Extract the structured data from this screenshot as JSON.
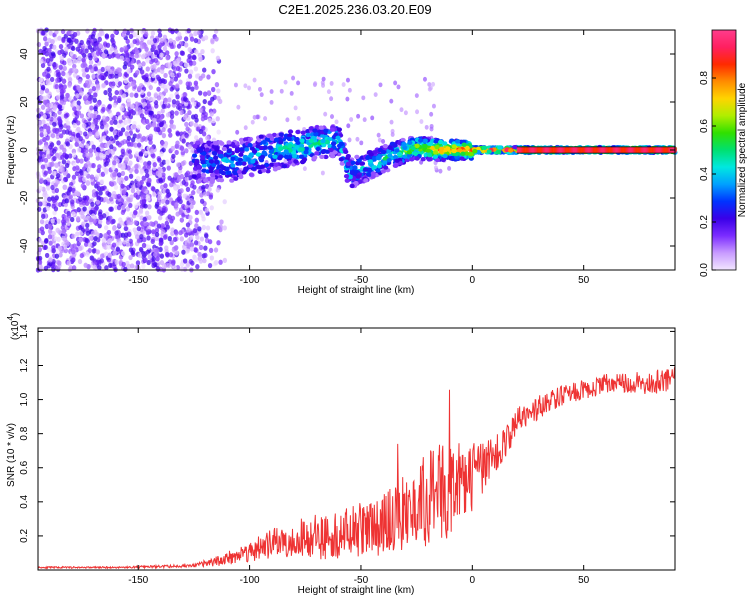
{
  "chart_data": [
    {
      "type": "heatmap",
      "title": "C2E1.2025.236.03.20.E09",
      "xlabel": "Height of straight line (km)",
      "ylabel": "Frequency (Hz)",
      "xlim": [
        -195,
        91
      ],
      "ylim": [
        -50,
        50
      ],
      "xticks": [
        "-150",
        "-100",
        "-50",
        "0",
        "50"
      ],
      "yticks": [
        "-40",
        "-20",
        "0",
        "20",
        "40"
      ],
      "colorbar": {
        "label": "Normalized spectral amplitude",
        "range": [
          0.0,
          1.0
        ],
        "ticks": [
          "0.0",
          "0.2",
          "0.4",
          "0.6",
          "0.8"
        ],
        "colors": [
          "#f2e6ff",
          "#c89bff",
          "#7b2cff",
          "#3a00e8",
          "#0033ff",
          "#00a0ff",
          "#00e8e0",
          "#00e070",
          "#30e000",
          "#b0ee00",
          "#ffd400",
          "#ff8c00",
          "#ff2a00",
          "#ff2060",
          "#ff3c8c"
        ]
      },
      "ridge": [
        {
          "x": -120,
          "y": -5,
          "v": 0.3
        },
        {
          "x": -110,
          "y": -5,
          "v": 0.35
        },
        {
          "x": -100,
          "y": -3,
          "v": 0.35
        },
        {
          "x": -90,
          "y": -1,
          "v": 0.4
        },
        {
          "x": -80,
          "y": 1,
          "v": 0.45
        },
        {
          "x": -70,
          "y": 3,
          "v": 0.45
        },
        {
          "x": -60,
          "y": 4,
          "v": 0.4
        },
        {
          "x": -55,
          "y": -10,
          "v": 0.35
        },
        {
          "x": -45,
          "y": -6,
          "v": 0.4
        },
        {
          "x": -35,
          "y": -2,
          "v": 0.5
        },
        {
          "x": -25,
          "y": 1,
          "v": 0.6
        },
        {
          "x": -15,
          "y": 0,
          "v": 0.75
        },
        {
          "x": 0,
          "y": 0,
          "v": 0.85
        },
        {
          "x": 20,
          "y": 0,
          "v": 0.9
        },
        {
          "x": 50,
          "y": 0,
          "v": 0.92
        },
        {
          "x": 90,
          "y": 0,
          "v": 0.95
        }
      ]
    },
    {
      "type": "line",
      "xlabel": "Height of straight line (km)",
      "ylabel": "SNR (10 * v/v)",
      "multiplier_label": "(x10",
      "multiplier_exp": "4",
      "multiplier_close": ")",
      "xlim": [
        -195,
        91
      ],
      "ylim": [
        0,
        1.42
      ],
      "xticks": [
        "-150",
        "-100",
        "-50",
        "0",
        "50"
      ],
      "yticks": [
        "0.2",
        "0.4",
        "0.6",
        "0.8",
        "1.0",
        "1.2",
        "1.4"
      ],
      "color": "#ee3333",
      "x": [
        -195,
        -180,
        -160,
        -140,
        -125,
        -115,
        -105,
        -95,
        -85,
        -75,
        -65,
        -55,
        -45,
        -35,
        -25,
        -20,
        -15,
        -10,
        -5,
        0,
        5,
        10,
        15,
        20,
        30,
        40,
        50,
        60,
        70,
        80,
        90
      ],
      "values": [
        0.015,
        0.015,
        0.015,
        0.02,
        0.025,
        0.05,
        0.09,
        0.13,
        0.17,
        0.19,
        0.2,
        0.22,
        0.25,
        0.3,
        0.37,
        0.42,
        0.45,
        0.48,
        0.5,
        0.55,
        0.6,
        0.66,
        0.75,
        0.87,
        0.96,
        1.02,
        1.06,
        1.09,
        1.1,
        1.1,
        1.12
      ],
      "noise": [
        0.005,
        0.005,
        0.005,
        0.008,
        0.01,
        0.03,
        0.05,
        0.08,
        0.1,
        0.12,
        0.14,
        0.15,
        0.18,
        0.2,
        0.25,
        0.3,
        0.3,
        0.28,
        0.25,
        0.2,
        0.15,
        0.12,
        0.1,
        0.08,
        0.07,
        0.06,
        0.06,
        0.06,
        0.06,
        0.07,
        0.08
      ]
    }
  ]
}
